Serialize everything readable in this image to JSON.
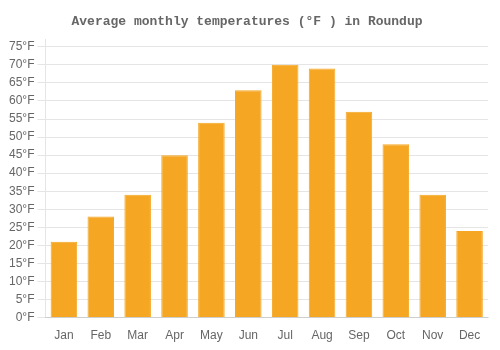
{
  "chart_data": {
    "type": "bar",
    "title": "Average monthly temperatures (°F ) in Roundup",
    "categories": [
      "Jan",
      "Feb",
      "Mar",
      "Apr",
      "May",
      "Jun",
      "Jul",
      "Aug",
      "Sep",
      "Oct",
      "Nov",
      "Dec"
    ],
    "values": [
      21,
      28,
      34,
      45,
      54,
      63,
      70,
      69,
      57,
      48,
      34,
      24
    ],
    "color": "#F5A623",
    "ylim": [
      0,
      77
    ],
    "yticks": [
      {
        "value": 0,
        "label": "0°F"
      },
      {
        "value": 5,
        "label": "5°F"
      },
      {
        "value": 10,
        "label": "10°F"
      },
      {
        "value": 15,
        "label": "15°F"
      },
      {
        "value": 20,
        "label": "20°F"
      },
      {
        "value": 25,
        "label": "25°F"
      },
      {
        "value": 30,
        "label": "30°F"
      },
      {
        "value": 35,
        "label": "35°F"
      },
      {
        "value": 40,
        "label": "40°F"
      },
      {
        "value": 45,
        "label": "45°F"
      },
      {
        "value": 50,
        "label": "50°F"
      },
      {
        "value": 55,
        "label": "55°F"
      },
      {
        "value": 60,
        "label": "60°F"
      },
      {
        "value": 65,
        "label": "65°F"
      },
      {
        "value": 70,
        "label": "70°F"
      },
      {
        "value": 75,
        "label": "75°F"
      }
    ],
    "grid": true
  }
}
